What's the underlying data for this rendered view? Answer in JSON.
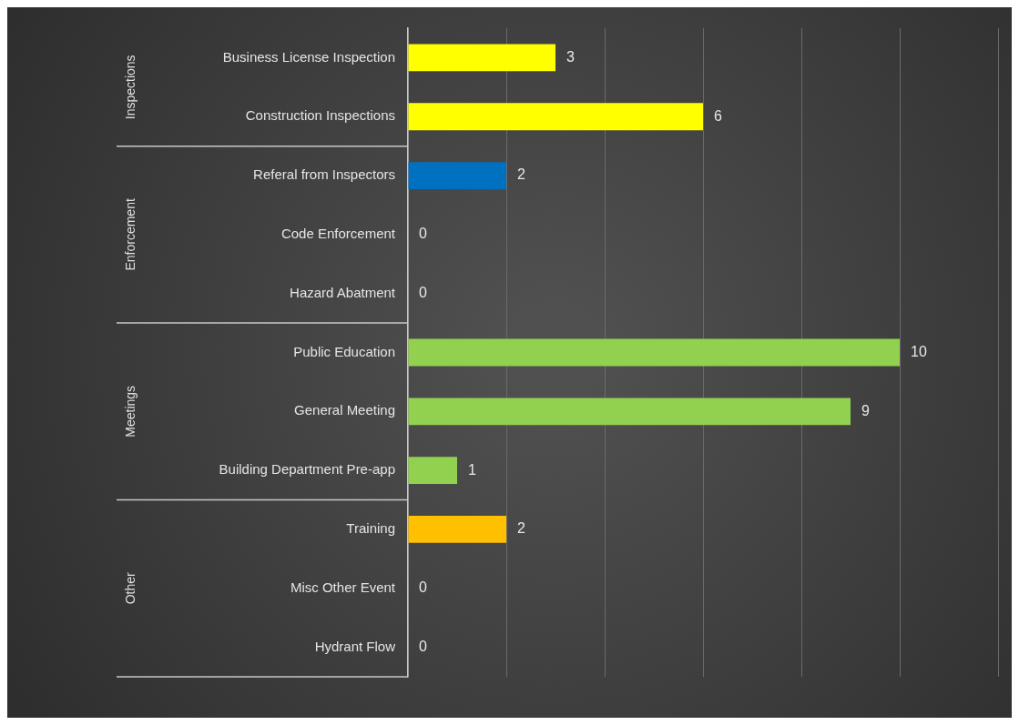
{
  "chart_data": {
    "type": "bar",
    "orientation": "horizontal",
    "categories": [
      "Business License Inspection",
      "Construction Inspections",
      "Referal from Inspectors",
      "Code Enforcement",
      "Hazard Abatment",
      "Public Education",
      "General Meeting",
      "Building Department Pre-app",
      "Training",
      "Misc Other Event",
      "Hydrant Flow"
    ],
    "values": [
      3,
      6,
      2,
      0,
      0,
      10,
      9,
      1,
      2,
      0,
      0
    ],
    "colors": [
      "#ffff00",
      "#ffff00",
      "#0070c0",
      "#0070c0",
      "#0070c0",
      "#92d050",
      "#92d050",
      "#92d050",
      "#ffc000",
      "#ffc000",
      "#ffc000"
    ],
    "xlim": [
      0,
      12
    ],
    "xticks": [
      {
        "value": 0,
        "label": null
      },
      {
        "value": 2,
        "label": null
      },
      {
        "value": 4,
        "label": null
      },
      {
        "value": 6,
        "label": null
      },
      {
        "value": 8,
        "label": null
      },
      {
        "value": 10,
        "label": null
      },
      {
        "value": 12,
        "label": null
      }
    ],
    "grid": "x",
    "tick_labels": "y",
    "data_labels": true,
    "legend": false,
    "annotations": [
      "Inspections",
      "Enforcement",
      "Meetings",
      "Other"
    ]
  }
}
